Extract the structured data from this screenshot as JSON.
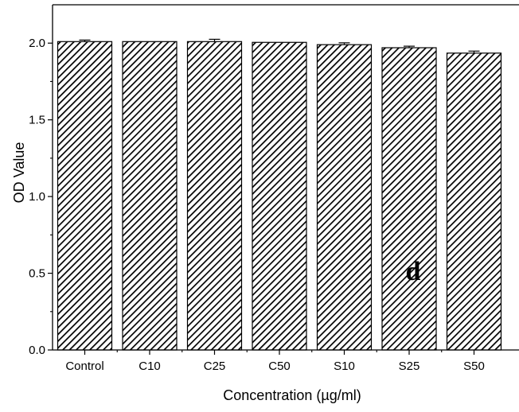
{
  "chart_data": {
    "type": "bar",
    "categories": [
      "Control",
      "C10",
      "C25",
      "C50",
      "S10",
      "S25",
      "S50"
    ],
    "values": [
      2.01,
      2.01,
      2.01,
      2.005,
      1.99,
      1.97,
      1.935
    ],
    "errors": [
      0.01,
      0.0,
      0.015,
      0.0,
      0.012,
      0.01,
      0.013
    ],
    "title": "",
    "xlabel": "Concentration (µg/ml)",
    "ylabel": "OD Value",
    "ylim": [
      0,
      2.25
    ],
    "yticks": [
      {
        "value": 0.0,
        "label": "0.0"
      },
      {
        "value": 0.5,
        "label": "0.5"
      },
      {
        "value": 1.0,
        "label": "1.0"
      },
      {
        "value": 1.5,
        "label": "1.5"
      },
      {
        "value": 2.0,
        "label": "2.0"
      }
    ],
    "annotation": "d",
    "bar_fill": "diagonal-hatch",
    "grid": false,
    "colors": {
      "bar_stroke": "#000000",
      "hatch": "#000000",
      "background": "#ffffff"
    }
  }
}
